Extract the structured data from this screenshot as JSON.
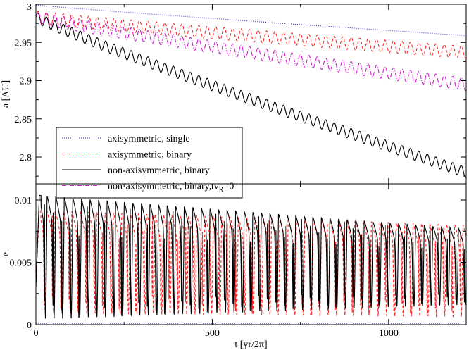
{
  "chart_data": [
    {
      "type": "line",
      "panel": "top",
      "xlabel": "",
      "ylabel": "a [AU]",
      "xlim": [
        0,
        1220
      ],
      "ylim": [
        2.765,
        3.0
      ],
      "xticks": [
        0,
        500,
        1000
      ],
      "xtick_labels": [
        "",
        "",
        ""
      ],
      "yticks": [
        2.8,
        2.85,
        2.9,
        2.95,
        3.0
      ],
      "ytick_labels": [
        "2.8",
        "2.85",
        "2.9",
        "2.95",
        "3"
      ],
      "legend_position": "center-left",
      "series": [
        {
          "name": "axisymmetric, single",
          "color": "#3b3bd6",
          "dash": "1,2",
          "model": {
            "start": 2.999,
            "end": 2.959,
            "amp": 0,
            "period": 24
          }
        },
        {
          "name": "axisymmetric, binary",
          "color": "#ff2020",
          "dash": "4,3",
          "model": {
            "start": 2.983,
            "end": 2.937,
            "amp": 0.008,
            "period": 24
          }
        },
        {
          "name": "non-axisymmetric, binary",
          "color": "#000000",
          "dash": "",
          "model": {
            "start": 2.983,
            "end": 2.78,
            "amp": 0.007,
            "period": 24
          }
        },
        {
          "name": "non-axisymmetric, binary, v",
          "name_sub": "R",
          "name_tail": "=0",
          "color": "#d21ad2",
          "dash": "6,2,1,2",
          "model": {
            "start": 2.983,
            "end": 2.895,
            "amp": 0.008,
            "period": 24
          }
        }
      ]
    },
    {
      "type": "line",
      "panel": "bottom",
      "xlabel": "t [yr/2π]",
      "ylabel": "e",
      "xlim": [
        0,
        1220
      ],
      "ylim": [
        0,
        0.0113
      ],
      "xticks": [
        0,
        500,
        1000
      ],
      "xtick_labels": [
        "0",
        "500",
        "1000"
      ],
      "yticks": [
        0,
        0.005,
        0.01
      ],
      "ytick_labels": [
        "0",
        "0.005",
        "0.01"
      ],
      "series": [
        {
          "name": "axisymmetric, single",
          "color": "#3b3bd6",
          "dash": "1,2",
          "model": {
            "type": "flat",
            "level": 0.0001
          }
        },
        {
          "name": "axisymmetric, binary",
          "color": "#ff2020",
          "dash": "4,3",
          "model": {
            "type": "osc",
            "period": 23.6,
            "peak_start": 0.0092,
            "peak_end": 0.008,
            "dip_start": 0.0009,
            "dip_end": 0.0006
          }
        },
        {
          "name": "non-axisymmetric, binary",
          "color": "#000000",
          "dash": "",
          "model": {
            "type": "osc",
            "period": 24.3,
            "peak_start": 0.0104,
            "peak_end": 0.0077,
            "dip_start": 0.0004,
            "dip_end": 0.0016
          }
        }
      ]
    }
  ]
}
